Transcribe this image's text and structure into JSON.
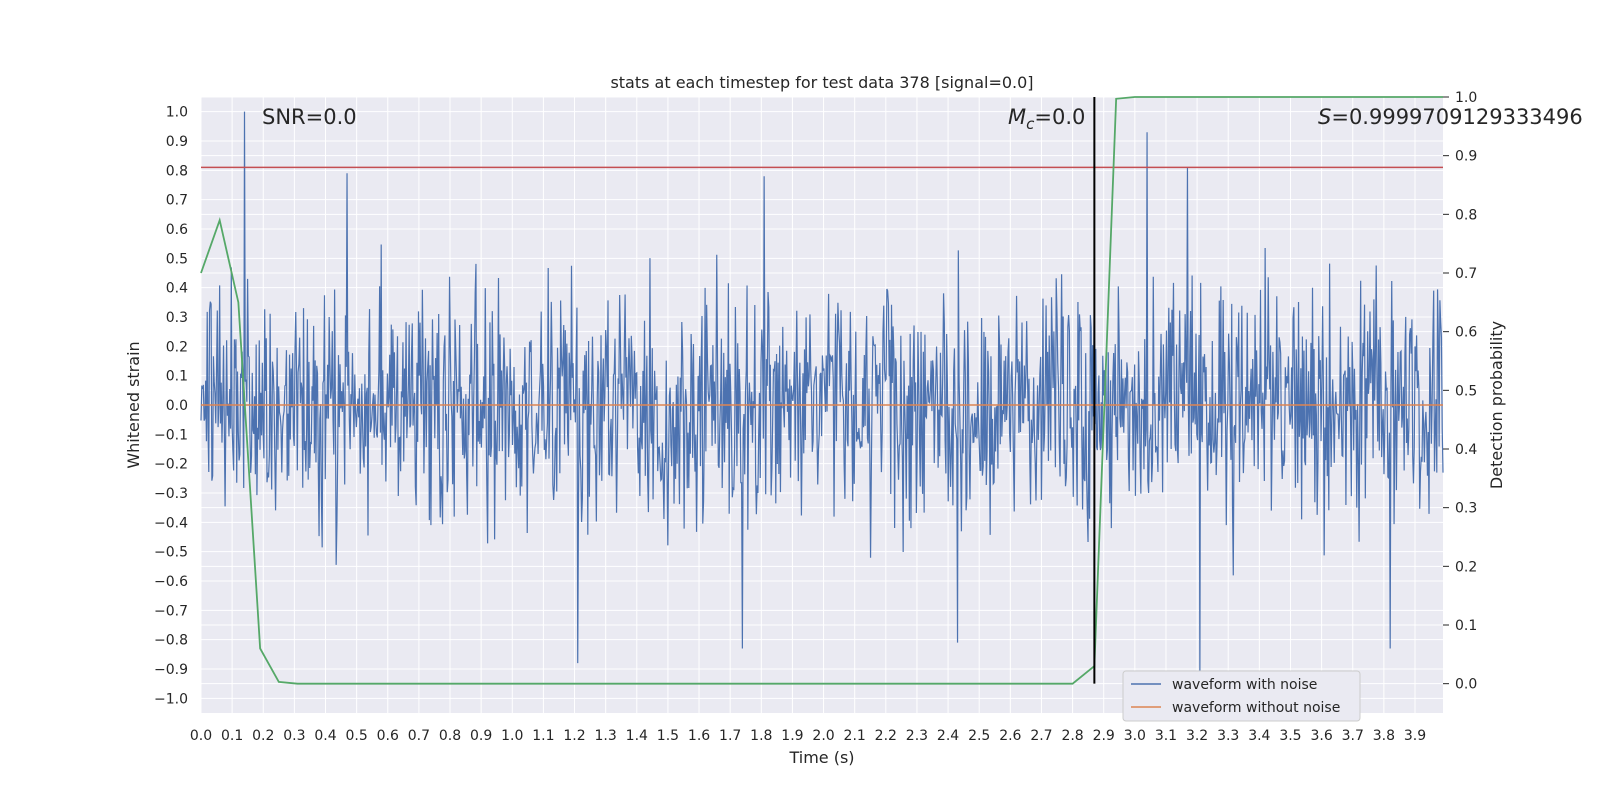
{
  "chart_data": {
    "type": "line",
    "title": "stats at each timestep for test data 378 [signal=0.0]",
    "xlabel": "Time (s)",
    "ylabel": "Whitened strain",
    "y2label": "Detection probability",
    "xlim": [
      0.0,
      3.99
    ],
    "ylim": [
      -1.05,
      1.05
    ],
    "y2lim": [
      -0.05,
      1.0
    ],
    "x_ticks": [
      0.0,
      0.1,
      0.2,
      0.3,
      0.4,
      0.5,
      0.6,
      0.7,
      0.8,
      0.9,
      1.0,
      1.1,
      1.2,
      1.3,
      1.4,
      1.5,
      1.6,
      1.7,
      1.8,
      1.9,
      2.0,
      2.1,
      2.2,
      2.3,
      2.4,
      2.5,
      2.6,
      2.7,
      2.8,
      2.9,
      3.0,
      3.1,
      3.2,
      3.3,
      3.4,
      3.5,
      3.6,
      3.7,
      3.8,
      3.9
    ],
    "y_ticks": [
      1.0,
      0.9,
      0.8,
      0.7,
      0.6,
      0.5,
      0.4,
      0.3,
      0.2,
      0.1,
      0.0,
      -0.1,
      -0.2,
      -0.3,
      -0.4,
      -0.5,
      -0.6,
      -0.7,
      -0.8,
      -0.9,
      -1.0
    ],
    "y2_ticks": [
      1.0,
      0.9,
      0.8,
      0.7,
      0.6,
      0.5,
      0.4,
      0.3,
      0.2,
      0.1,
      0.0
    ],
    "grid": true,
    "legend": "bottom-right",
    "annotations": {
      "snr": "SNR=0.0",
      "mc_symbol": "M",
      "mc_sub": "c",
      "mc_value": "=0.0",
      "s_symbol": "S",
      "s_value": "=0.9999709129333496"
    },
    "series": [
      {
        "name": "waveform with noise",
        "color": "#4c72b0",
        "axis": "left",
        "noise_amplitude": 0.36,
        "peaks": [
          [
            0.14,
            1.0
          ],
          [
            3.04,
            0.93
          ],
          [
            0.47,
            0.79
          ],
          [
            1.81,
            0.78
          ],
          [
            3.17,
            0.81
          ],
          [
            1.21,
            -0.88
          ],
          [
            3.21,
            -0.94
          ],
          [
            1.74,
            -0.83
          ],
          [
            3.82,
            -0.83
          ],
          [
            2.43,
            -0.81
          ]
        ]
      },
      {
        "name": "waveform without noise",
        "color": "#dd8452",
        "axis": "left",
        "x": [
          0.0,
          3.99
        ],
        "y": [
          0.0,
          0.0
        ]
      },
      {
        "name": "",
        "color": "#55a868",
        "axis": "right",
        "x": [
          0.0,
          0.06,
          0.12,
          0.19,
          0.25,
          0.31,
          0.5,
          1.0,
          1.5,
          2.0,
          2.5,
          2.8,
          2.87,
          2.94,
          3.0,
          3.5,
          3.99
        ],
        "y": [
          0.7,
          0.79,
          0.65,
          0.06,
          0.003,
          0.0,
          0.0,
          0.0,
          0.0,
          0.0,
          0.0,
          0.0,
          0.03,
          0.997,
          1.0,
          1.0,
          1.0
        ]
      }
    ],
    "threshold": {
      "y": 0.81,
      "color": "#c44e52"
    },
    "marker_line": {
      "x": 2.87,
      "color": "#000000"
    }
  }
}
